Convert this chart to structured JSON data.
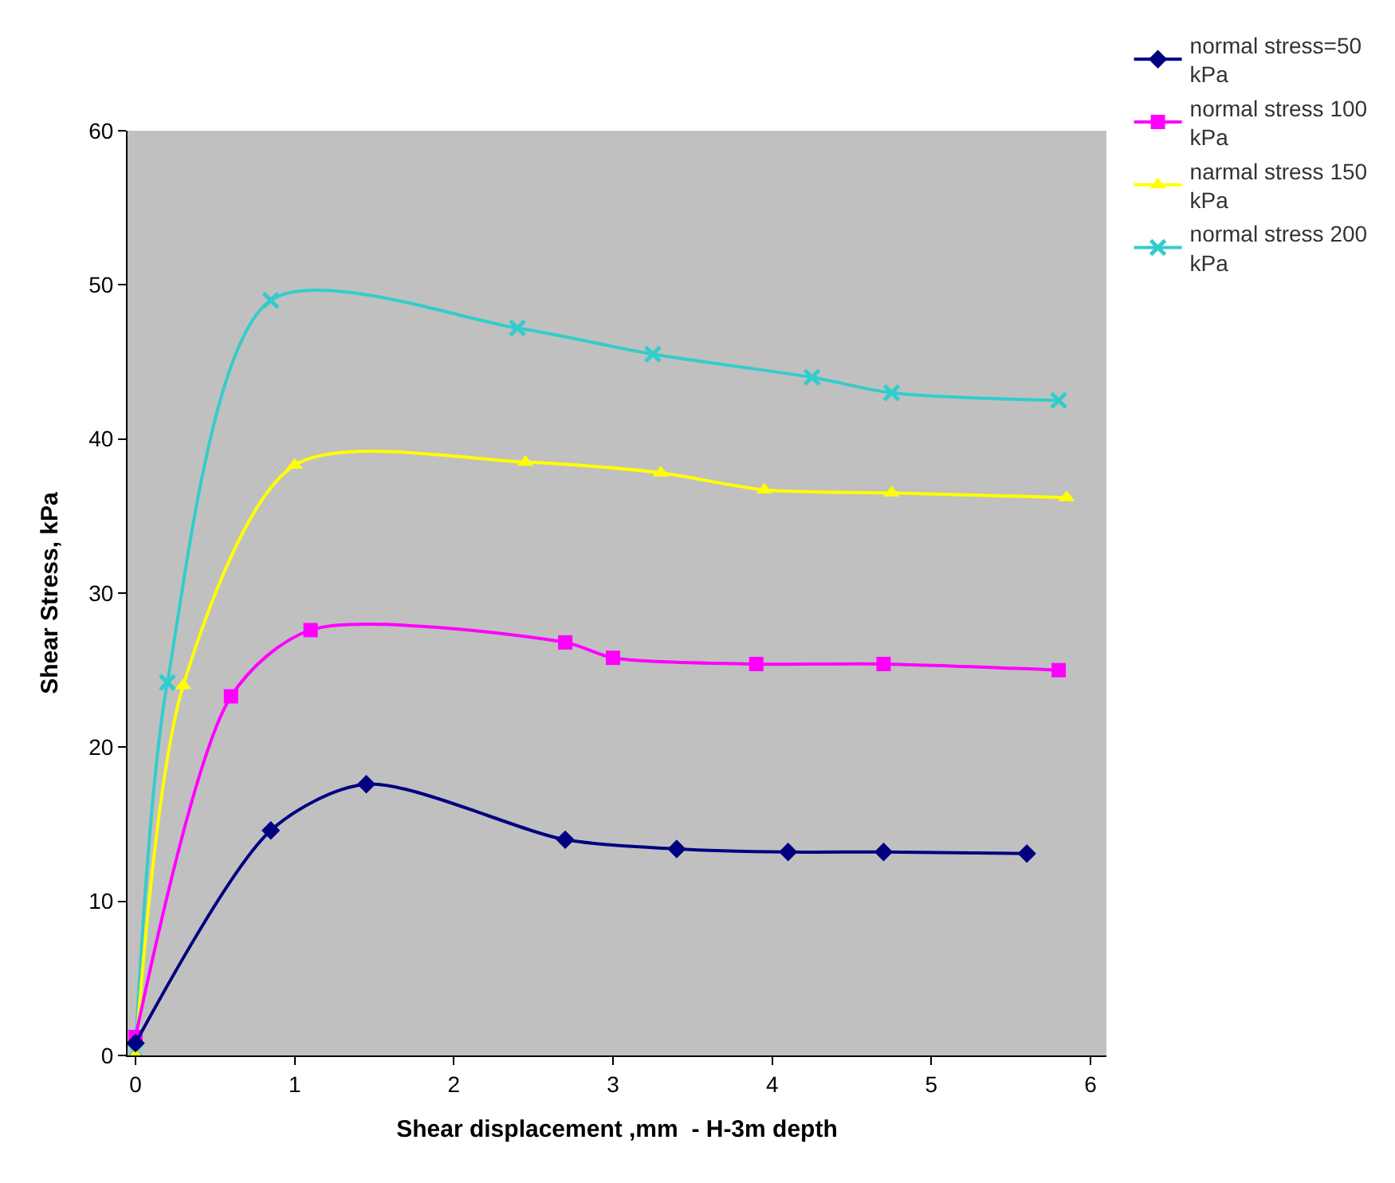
{
  "chart_data": {
    "type": "line",
    "xlabel": "Shear displacement ,mm  - H-3m depth",
    "ylabel": "Shear Stress, kPa",
    "xlim": [
      -0.05,
      6.1
    ],
    "ylim": [
      0,
      60
    ],
    "xticks": [
      0,
      1,
      2,
      3,
      4,
      5,
      6
    ],
    "yticks": [
      0,
      10,
      20,
      30,
      40,
      50,
      60
    ],
    "grid": false,
    "legend": "top right",
    "series": [
      {
        "name": "normal stress=50 kPa",
        "color": "#000080",
        "marker": "diamond",
        "x": [
          0,
          0.85,
          1.45,
          2.7,
          3.4,
          4.1,
          4.7,
          5.6
        ],
        "values": [
          0.8,
          14.6,
          17.6,
          14,
          13.4,
          13.2,
          13.2,
          13.1
        ]
      },
      {
        "name": "normal stress 100 kPa",
        "color": "#ff00ff",
        "marker": "square",
        "x": [
          0,
          0.6,
          1.1,
          2.7,
          3.0,
          3.9,
          4.7,
          5.8
        ],
        "values": [
          1.2,
          23.3,
          27.6,
          26.8,
          25.8,
          25.4,
          25.4,
          25
        ]
      },
      {
        "name": "narmal stress 150 kPa",
        "color": "#ffff00",
        "marker": "triangle",
        "x": [
          0,
          0.3,
          1.0,
          2.45,
          3.3,
          3.95,
          4.75,
          5.85
        ],
        "values": [
          0,
          24,
          38.3,
          38.5,
          37.8,
          36.7,
          36.5,
          36.2
        ]
      },
      {
        "name": "normal stress 200 kPa",
        "color": "#33cccc",
        "marker": "cross",
        "x": [
          0,
          0.2,
          0.85,
          2.4,
          3.25,
          4.25,
          4.75,
          5.8
        ],
        "values": [
          0.3,
          24.2,
          49,
          47.2,
          45.5,
          44,
          43,
          42.5
        ]
      }
    ]
  }
}
